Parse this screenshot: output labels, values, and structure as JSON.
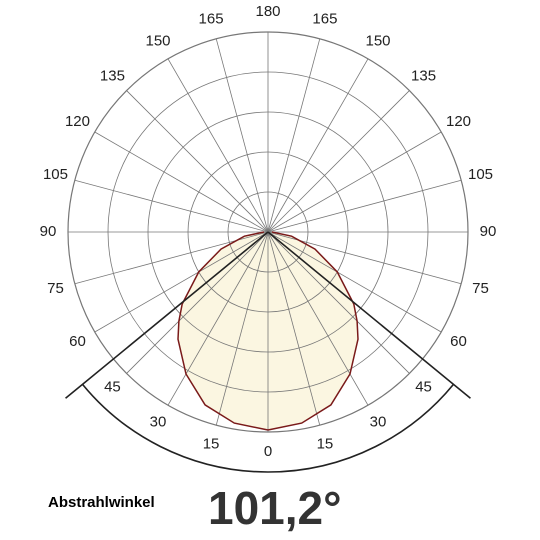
{
  "chart_data": {
    "type": "polar",
    "ticks_left": [
      0,
      15,
      30,
      45,
      60,
      75,
      90,
      105,
      120,
      135,
      150,
      165,
      180
    ],
    "ticks_right": [
      15,
      30,
      45,
      60,
      75,
      90,
      105,
      120,
      135,
      150,
      165
    ],
    "rlim": [
      0,
      1
    ],
    "angles": [
      0,
      10,
      20,
      30,
      40,
      45,
      50,
      60,
      70,
      80,
      90
    ],
    "values": [
      0.99,
      0.97,
      0.92,
      0.82,
      0.7,
      0.63,
      0.56,
      0.4,
      0.25,
      0.12,
      0.02
    ],
    "color": "#7a1a1a",
    "fill": "#fbf6e1",
    "beam": {
      "value": 101.2,
      "label": "101,2°",
      "caption": "Abstrahlwinkel"
    }
  }
}
